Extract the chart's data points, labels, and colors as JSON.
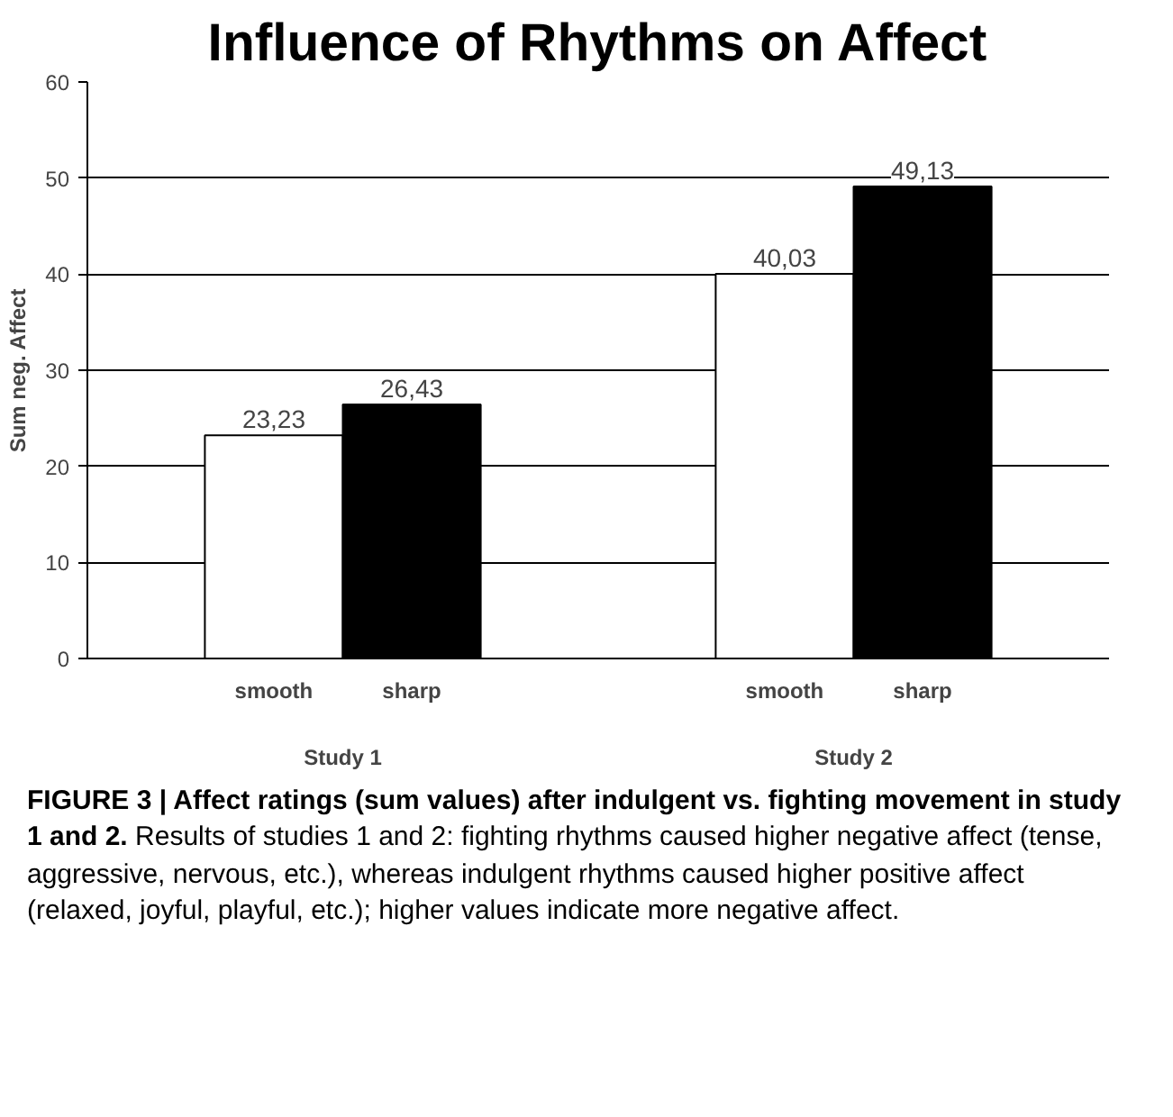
{
  "chart_data": {
    "type": "bar",
    "title": "Influence of Rhythms on Affect",
    "ylabel": "Sum neg. Affect",
    "categories": [
      "Study 1",
      "Study 2"
    ],
    "series": [
      {
        "name": "smooth",
        "color": "#ffffff",
        "values": [
          23.23,
          40.03
        ],
        "value_labels": [
          "23,23",
          "40,03"
        ]
      },
      {
        "name": "sharp",
        "color": "#000000",
        "values": [
          26.43,
          49.13
        ],
        "value_labels": [
          "26,43",
          "49,13"
        ]
      }
    ],
    "ylim": [
      0,
      60
    ],
    "yticks": [
      0,
      10,
      20,
      30,
      40,
      50,
      60
    ],
    "grid": "y",
    "annotations": [
      "FIGURE 3 | Affect ratings (sum values) after indulgent vs. fighting movement in study 1 and 2.",
      "Results of studies 1 and 2: fighting rhythms caused higher negative affect (tense, aggressive, nervous, etc.), whereas indulgent rhythms caused higher positive affect (relaxed, joyful, playful, etc.); higher values indicate more negative affect."
    ]
  }
}
